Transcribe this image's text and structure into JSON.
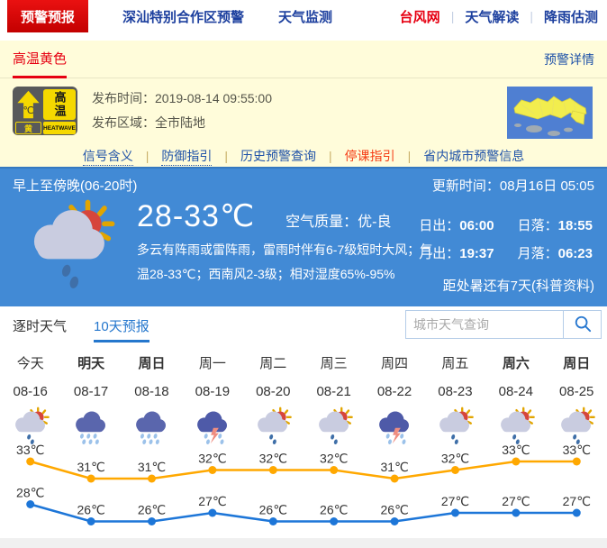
{
  "colors": {
    "warning_red": "#e60012",
    "link_blue": "#1f52a8",
    "panel_blue": "#428ad5",
    "heat_yellow": "#f5d800",
    "high_line": "#ffa800",
    "low_line": "#1d76d8"
  },
  "top_nav": {
    "tabs": [
      {
        "label": "预警预报"
      },
      {
        "label": "深汕特别合作区预警"
      },
      {
        "label": "天气监测"
      }
    ],
    "links": [
      {
        "label": "台风网"
      },
      {
        "label": "天气解读"
      },
      {
        "label": "降雨估测"
      }
    ],
    "separator": "|"
  },
  "warning_panel": {
    "active_tab": "高温黄色",
    "detail_link": "预警详情",
    "heat_icon": {
      "temp_symbol": "℃",
      "title": "高温",
      "level": "黄",
      "subtitle": "HEATWAVE"
    },
    "publish_time_label": "发布时间：",
    "publish_time": "2019-08-14 09:55:00",
    "publish_area_label": "发布区域：",
    "publish_area": "全市陆地",
    "links": [
      "信号含义",
      "防御指引",
      "历史预警查询",
      "停课指引",
      "省内城市预警信息"
    ],
    "separator": "|"
  },
  "current_panel": {
    "period": "早上至傍晚(06-20时)",
    "update_label": "更新时间：",
    "update_time": "08月16日 05:05",
    "temp_range": "28-33℃",
    "air_quality_label": "空气质量：",
    "air_quality_value": "优-良",
    "desc_line1": "多云有阵雨或雷阵雨，雷雨时伴有6-7级短时大风；气",
    "desc_line2": "温28-33℃；西南风2-3级；相对湿度65%-95%",
    "sun_moon": [
      {
        "label": "日出：",
        "value": "06:00"
      },
      {
        "label": "日落：",
        "value": "18:55"
      },
      {
        "label": "月出：",
        "value": "19:37"
      },
      {
        "label": "月落：",
        "value": "06:23"
      }
    ],
    "countdown": "距处暑还有7天(科普资料)"
  },
  "forecast": {
    "tabs": [
      {
        "label": "逐时天气",
        "active": false
      },
      {
        "label": "10天预报",
        "active": true
      }
    ],
    "search_placeholder": "城市天气查询",
    "days": [
      {
        "name": "今天",
        "date": "08-16",
        "bold": false,
        "icon": "sun-shower"
      },
      {
        "name": "明天",
        "date": "08-17",
        "bold": true,
        "icon": "heavy-rain"
      },
      {
        "name": "周日",
        "date": "08-18",
        "bold": true,
        "icon": "heavy-rain"
      },
      {
        "name": "周一",
        "date": "08-19",
        "bold": false,
        "icon": "thunderstorm"
      },
      {
        "name": "周二",
        "date": "08-20",
        "bold": false,
        "icon": "sun-shower"
      },
      {
        "name": "周三",
        "date": "08-21",
        "bold": false,
        "icon": "sun-shower"
      },
      {
        "name": "周四",
        "date": "08-22",
        "bold": false,
        "icon": "thunderstorm"
      },
      {
        "name": "周五",
        "date": "08-23",
        "bold": false,
        "icon": "sun-shower"
      },
      {
        "name": "周六",
        "date": "08-24",
        "bold": true,
        "icon": "sun-shower"
      },
      {
        "name": "周日",
        "date": "08-25",
        "bold": true,
        "icon": "sun-shower"
      }
    ]
  },
  "chart_data": {
    "type": "line",
    "unit": "℃",
    "categories": [
      "08-16",
      "08-17",
      "08-18",
      "08-19",
      "08-20",
      "08-21",
      "08-22",
      "08-23",
      "08-24",
      "08-25"
    ],
    "series": [
      {
        "name": "high",
        "values": [
          33,
          31,
          31,
          32,
          32,
          32,
          31,
          32,
          33,
          33
        ],
        "color": "#ffa800"
      },
      {
        "name": "low",
        "values": [
          28,
          26,
          26,
          27,
          26,
          26,
          26,
          27,
          27,
          27
        ],
        "color": "#1d76d8"
      }
    ],
    "ylim": [
      25,
      34
    ],
    "grid": false,
    "legend": "none"
  }
}
